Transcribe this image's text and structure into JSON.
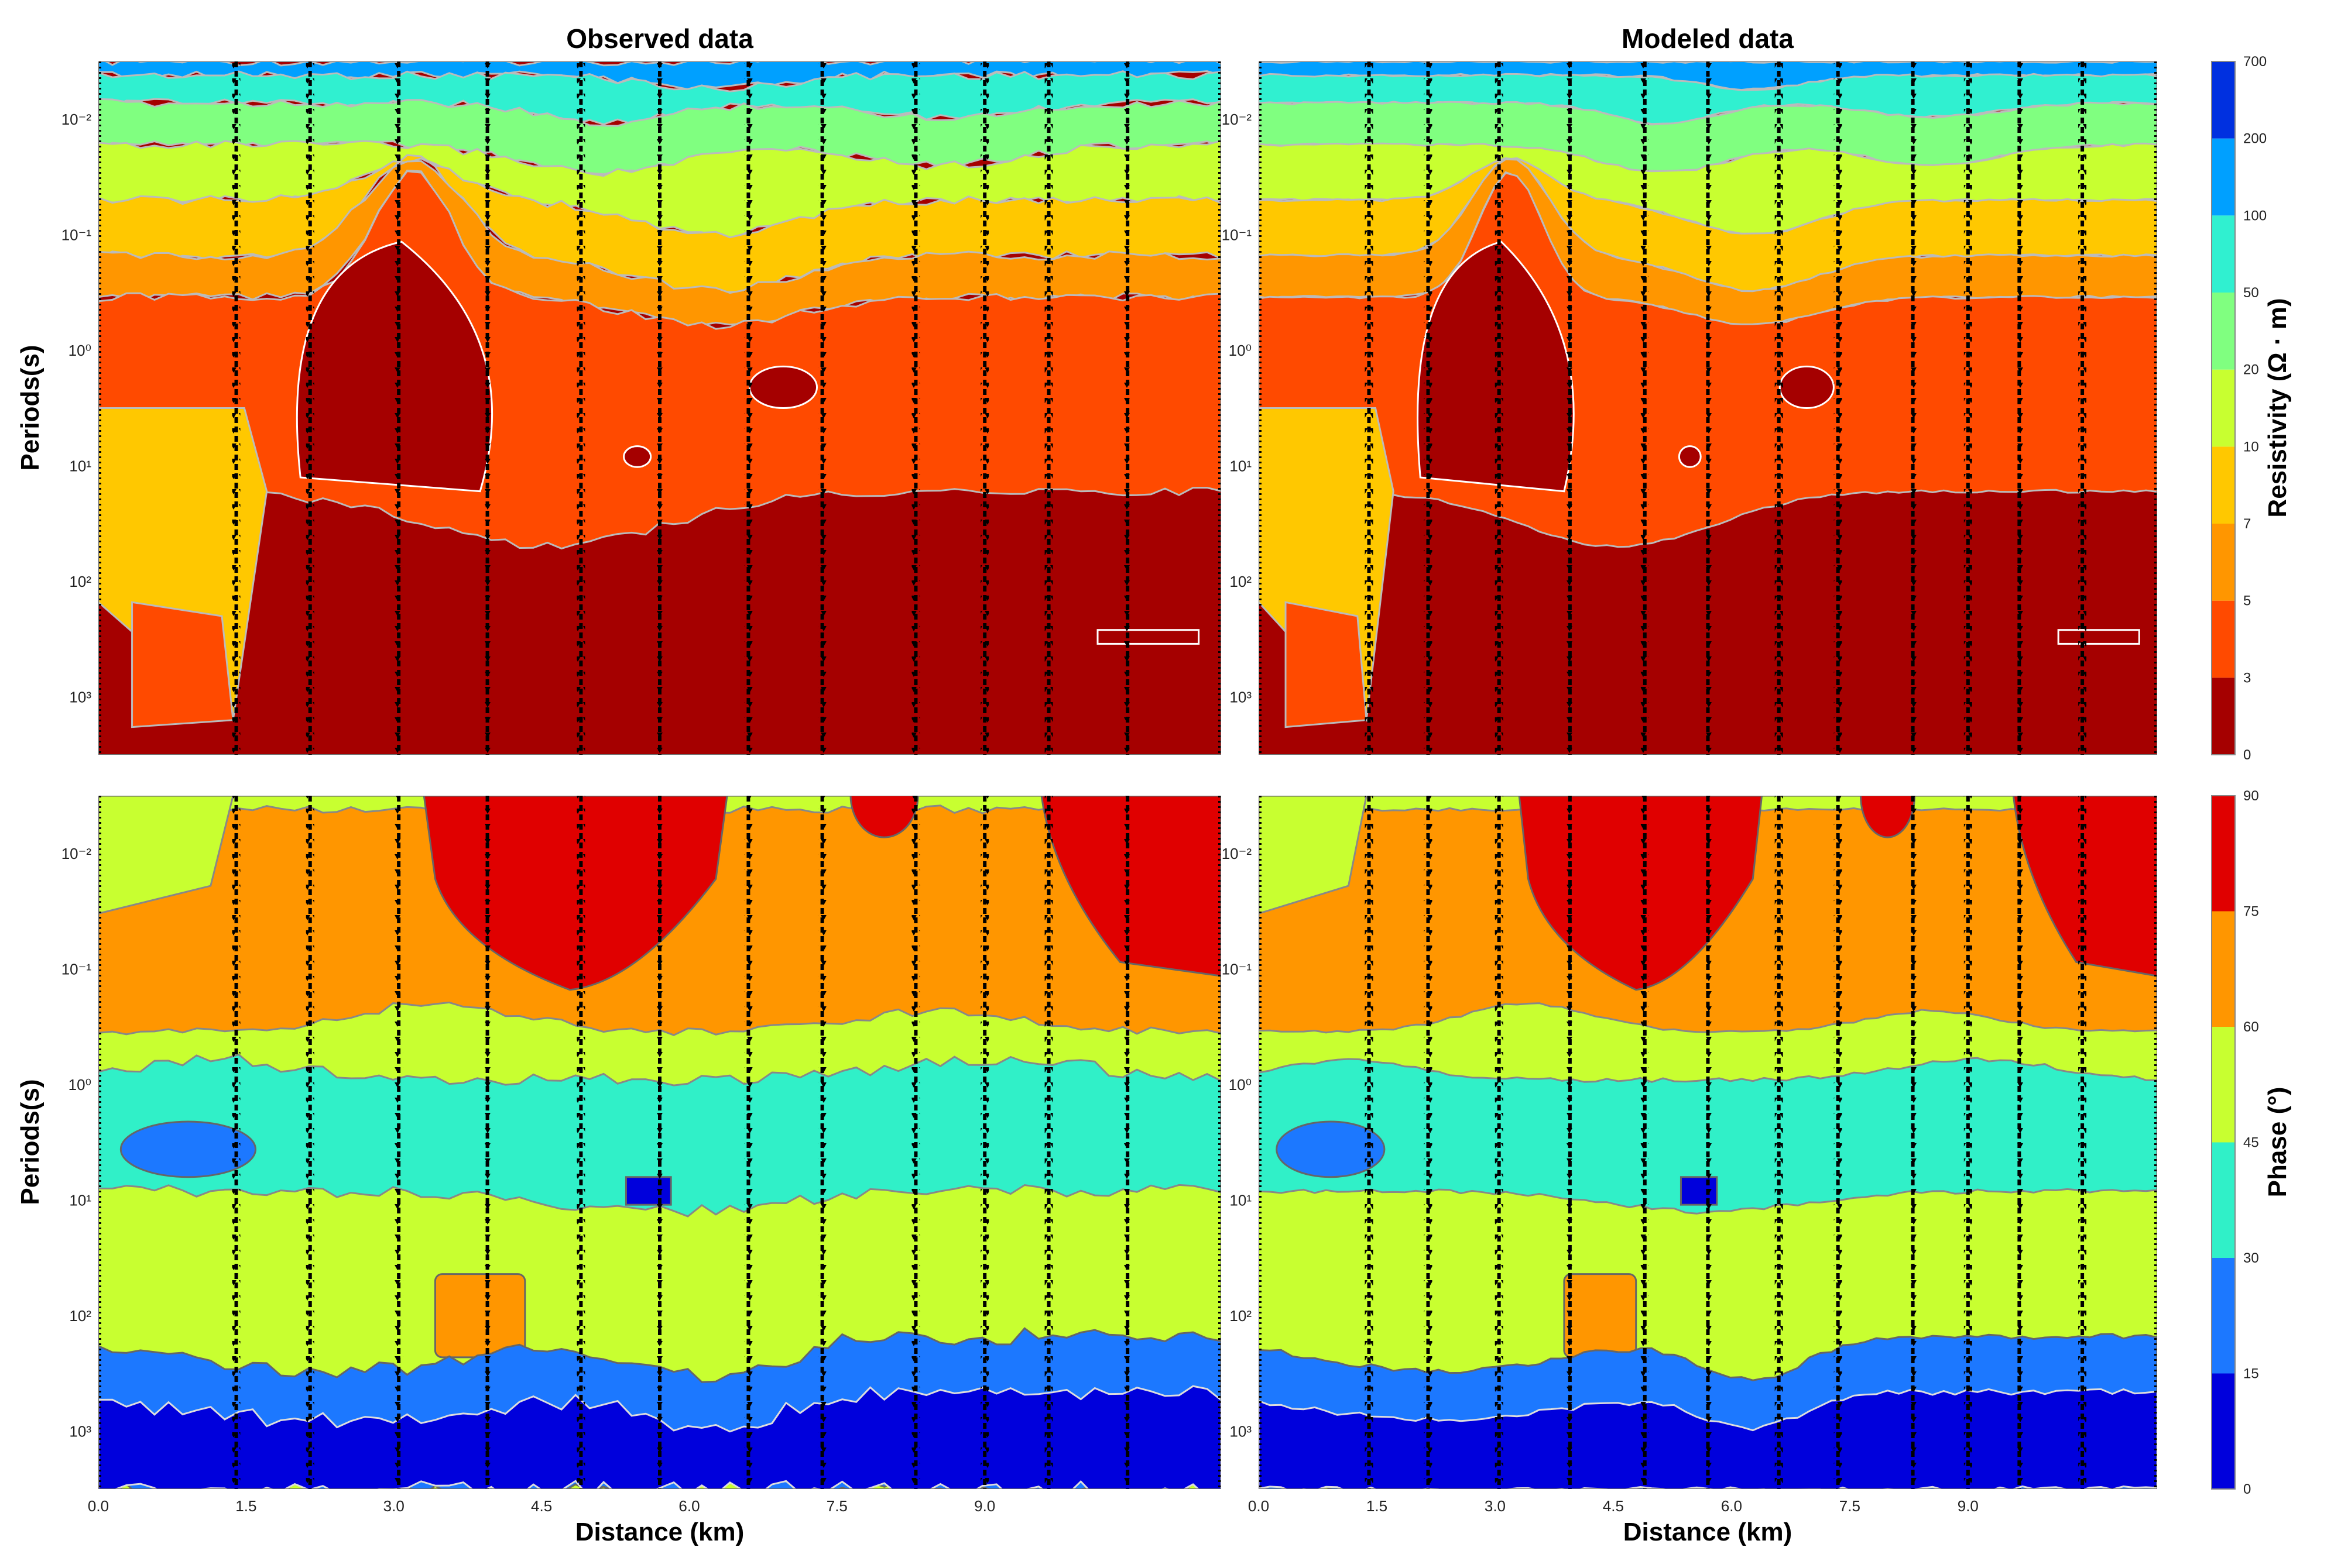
{
  "figure": {
    "titles": [
      "Observed data",
      "Modeled data"
    ],
    "xlabel": "Distance (km)",
    "ylabel": "Periods(s)",
    "resistivity_colorbar": {
      "label": "Resistivity (Ω · m)",
      "ticks": [
        "0",
        "3",
        "5",
        "7",
        "10",
        "20",
        "50",
        "100",
        "200",
        "700"
      ],
      "colors": [
        "#a50000",
        "#ff4a00",
        "#ff9600",
        "#ffc800",
        "#c8ff30",
        "#80ff80",
        "#30f0d0",
        "#00a0ff",
        "#0030e0"
      ]
    },
    "phase_colorbar": {
      "label": "Phase (°)",
      "ticks": [
        "0",
        "15",
        "30",
        "45",
        "60",
        "75",
        "90"
      ],
      "colors": [
        "#0000dc",
        "#1c78ff",
        "#30f0c8",
        "#c8ff30",
        "#ff9600",
        "#e00000"
      ]
    },
    "y_ticks": [
      "10⁻²",
      "10⁻¹",
      "10⁰",
      "10¹",
      "10²",
      "10³"
    ],
    "x_ticks": [
      "0.0",
      "1.5",
      "3.0",
      "4.5",
      "6.0",
      "7.5",
      "9.0"
    ]
  },
  "chart_data": [
    {
      "type": "heatmap",
      "title": "Observed data",
      "quantity": "apparent resistivity",
      "xlabel": "",
      "ylabel": "Periods(s)",
      "xlim": [
        0,
        11.4
      ],
      "ylim_log10": [
        -2.5,
        3.5
      ],
      "y_scale": "log",
      "station_x_km": [
        1.4,
        2.15,
        3.05,
        3.95,
        4.9,
        5.7,
        6.6,
        7.35,
        8.3,
        9.0,
        9.65,
        10.45
      ],
      "contour_levels": [
        0,
        3,
        5,
        7,
        10,
        20,
        50,
        100,
        200,
        700
      ]
    },
    {
      "type": "heatmap",
      "title": "Modeled data",
      "quantity": "apparent resistivity",
      "xlabel": "",
      "ylabel": "",
      "xlim": [
        0,
        11.4
      ],
      "ylim_log10": [
        -2.5,
        3.5
      ],
      "y_scale": "log",
      "station_x_km": [
        1.4,
        2.15,
        3.05,
        3.95,
        4.9,
        5.7,
        6.6,
        7.35,
        8.3,
        9.0,
        9.65,
        10.45
      ],
      "contour_levels": [
        0,
        3,
        5,
        7,
        10,
        20,
        50,
        100,
        200,
        700
      ]
    },
    {
      "type": "heatmap",
      "title": "",
      "quantity": "phase",
      "xlabel": "Distance (km)",
      "ylabel": "Periods(s)",
      "xlim": [
        0,
        11.4
      ],
      "ylim_log10": [
        -2.5,
        3.5
      ],
      "y_scale": "log",
      "station_x_km": [
        1.4,
        2.15,
        3.05,
        3.95,
        4.9,
        5.7,
        6.6,
        7.35,
        8.3,
        9.0,
        9.65,
        10.45
      ],
      "contour_levels": [
        0,
        15,
        30,
        45,
        60,
        75,
        90
      ]
    },
    {
      "type": "heatmap",
      "title": "",
      "quantity": "phase",
      "xlabel": "Distance (km)",
      "ylabel": "",
      "xlim": [
        0,
        11.4
      ],
      "ylim_log10": [
        -2.5,
        3.5
      ],
      "y_scale": "log",
      "station_x_km": [
        1.4,
        2.15,
        3.05,
        3.95,
        4.9,
        5.7,
        6.6,
        7.35,
        8.3,
        9.0,
        9.65,
        10.45
      ],
      "contour_levels": [
        0,
        15,
        30,
        45,
        60,
        75,
        90
      ]
    }
  ]
}
